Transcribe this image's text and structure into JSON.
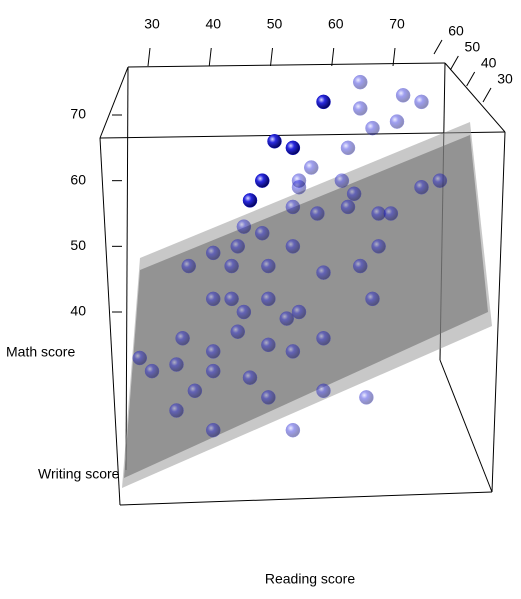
{
  "chart_data": {
    "type": "scatter3d",
    "x_label": "Reading score",
    "y_label": "Math score",
    "z_label": "Writing score",
    "color": "#1010c8",
    "xlim": [
      30,
      70
    ],
    "ylim": [
      40,
      70
    ],
    "zlim": [
      30,
      60
    ],
    "xticks": [
      30,
      40,
      50,
      60,
      70
    ],
    "yticks": [
      40,
      50,
      60,
      70
    ],
    "zticks": [
      30,
      40,
      50,
      60
    ],
    "x": [
      64,
      71,
      74,
      58,
      64,
      70,
      66,
      50,
      53,
      62,
      56,
      48,
      54,
      61,
      77,
      46,
      53,
      57,
      62,
      67,
      45,
      48,
      53,
      44,
      40,
      36,
      43,
      49,
      58,
      64,
      67,
      40,
      43,
      49,
      54,
      45,
      52,
      35,
      28,
      30,
      34,
      40,
      49,
      53,
      37,
      34,
      40,
      49,
      53,
      65,
      58,
      40,
      58,
      66,
      69,
      74,
      63,
      54,
      44,
      46
    ],
    "y": [
      75,
      73,
      72,
      72,
      71,
      69,
      68,
      66,
      65,
      65,
      62,
      60,
      59,
      60,
      60,
      57,
      56,
      55,
      56,
      55,
      53,
      52,
      50,
      50,
      49,
      47,
      47,
      47,
      46,
      47,
      50,
      42,
      42,
      42,
      40,
      40,
      39,
      36,
      33,
      31,
      32,
      31,
      35,
      34,
      28,
      25,
      22,
      27,
      22,
      27,
      28,
      34,
      36,
      42,
      55,
      59,
      58,
      60,
      37,
      30
    ],
    "z": [
      69,
      70,
      71,
      63,
      66,
      68,
      65,
      58,
      57,
      62,
      60,
      52,
      58,
      58,
      66,
      50,
      54,
      57,
      58,
      62,
      48,
      51,
      52,
      46,
      44,
      42,
      46,
      49,
      54,
      57,
      58,
      41,
      44,
      46,
      48,
      43,
      47,
      36,
      32,
      31,
      34,
      36,
      42,
      44,
      34,
      31,
      33,
      38,
      40,
      48,
      44,
      38,
      48,
      54,
      63,
      67,
      61,
      57,
      41,
      39
    ]
  }
}
